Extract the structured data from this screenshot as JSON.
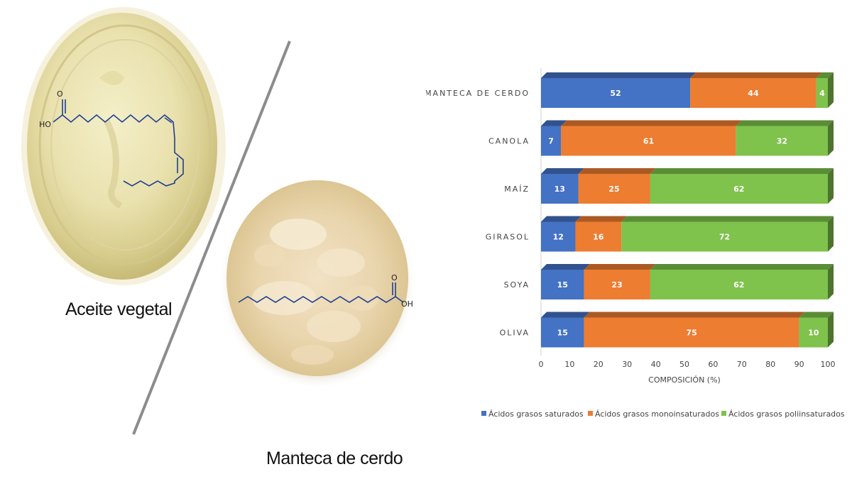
{
  "captions": {
    "oil": "Aceite vegetal",
    "lard": "Manteca de cerdo"
  },
  "molecules": {
    "oil_acid_label": "HO",
    "oil_carbonyl_label": "O",
    "lard_acid_label": "OH",
    "lard_carbonyl_label": "O"
  },
  "colors": {
    "saturated": "#4472c4",
    "monounsaturated": "#ed7d31",
    "polyunsaturated": "#7fc24c",
    "bond": "#1f3f8f"
  },
  "chart_data": {
    "type": "bar",
    "orientation": "horizontal",
    "stacked": true,
    "categories": [
      "MANTECA DE CERDO",
      "CANOLA",
      "MAÍZ",
      "GIRASOL",
      "SOYA",
      "OLIVA"
    ],
    "series": [
      {
        "name": "Ácidos grasos saturados",
        "values": [
          52,
          7,
          13,
          12,
          15,
          15
        ],
        "color": "#4472c4"
      },
      {
        "name": "Ácidos grasos monoinsaturados",
        "values": [
          44,
          61,
          25,
          16,
          23,
          75
        ],
        "color": "#ed7d31"
      },
      {
        "name": "Ácidos grasos poliinsaturados",
        "values": [
          4,
          32,
          62,
          72,
          62,
          10
        ],
        "color": "#7fc24c"
      }
    ],
    "xlabel": "COMPOSICIÓN (%)",
    "ylabel": "",
    "xlim": [
      0,
      100
    ],
    "xticks": [
      0,
      10,
      20,
      30,
      40,
      50,
      60,
      70,
      80,
      90,
      100
    ],
    "legend": "bottom",
    "grid": false
  }
}
